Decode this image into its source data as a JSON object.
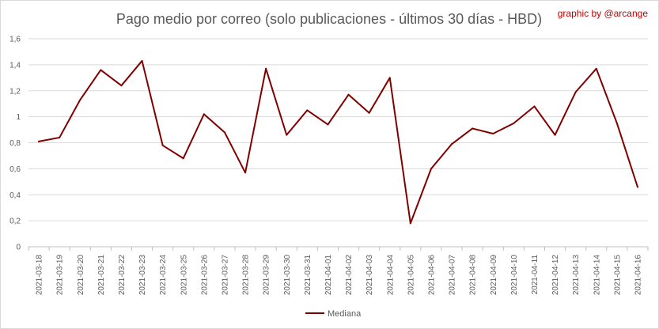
{
  "chart_data": {
    "type": "line",
    "title": "Pago medio por correo (solo publicaciones - últimos 30 días - HBD)",
    "credit": "graphic by @arcange",
    "xlabel": "",
    "ylabel": "",
    "ylim": [
      0,
      1.6
    ],
    "yticks": [
      "0",
      "0,2",
      "0,4",
      "0,6",
      "0,8",
      "1",
      "1,2",
      "1,4",
      "1,6"
    ],
    "grid": "horizontal",
    "legend_position": "bottom",
    "categories": [
      "2021-03-18",
      "2021-03-19",
      "2021-03-20",
      "2021-03-21",
      "2021-03-22",
      "2021-03-23",
      "2021-03-24",
      "2021-03-25",
      "2021-03-26",
      "2021-03-27",
      "2021-03-28",
      "2021-03-29",
      "2021-03-30",
      "2021-03-31",
      "2021-04-01",
      "2021-04-02",
      "2021-04-03",
      "2021-04-04",
      "2021-04-05",
      "2021-04-06",
      "2021-04-07",
      "2021-04-08",
      "2021-04-09",
      "2021-04-10",
      "2021-04-11",
      "2021-04-12",
      "2021-04-13",
      "2021-04-14",
      "2021-04-15",
      "2021-04-16"
    ],
    "series": [
      {
        "name": "Mediana",
        "values": [
          0.81,
          0.84,
          1.13,
          1.36,
          1.24,
          1.43,
          0.78,
          0.68,
          1.02,
          0.88,
          0.57,
          1.37,
          0.86,
          1.05,
          0.94,
          1.17,
          1.03,
          1.3,
          0.18,
          0.6,
          0.79,
          0.91,
          0.87,
          0.95,
          1.08,
          0.86,
          1.19,
          1.37,
          0.95,
          0.46
        ]
      }
    ]
  },
  "colors": {
    "series": "#800000",
    "credit": "#c00000",
    "grid": "#d9d9d9",
    "axis": "#bfbfbf",
    "text": "#595959"
  }
}
